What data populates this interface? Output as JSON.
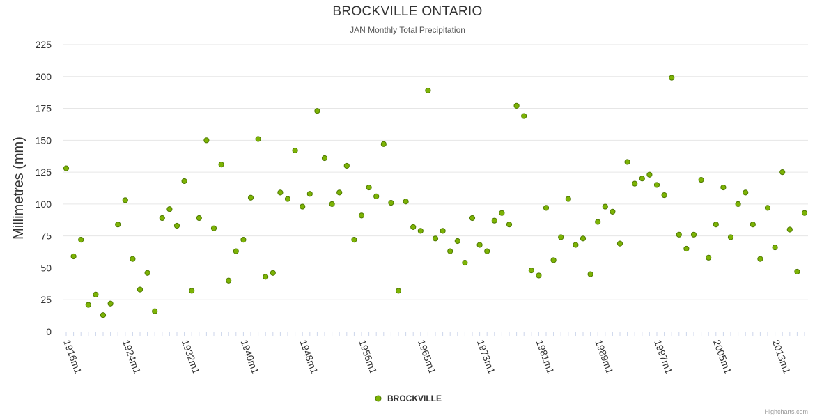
{
  "chart_data": {
    "type": "scatter",
    "title": "BROCKVILLE ONTARIO",
    "subtitle": "JAN Monthly Total Precipitation",
    "ylabel": "Millimetres (mm)",
    "xlabel": "",
    "ylim": [
      0,
      225
    ],
    "yticks": [
      0,
      25,
      50,
      75,
      100,
      125,
      150,
      175,
      200,
      225
    ],
    "x_tick_labels": [
      {
        "label": "1916m1",
        "index": 0
      },
      {
        "label": "1924m1",
        "index": 8
      },
      {
        "label": "1932m1",
        "index": 16
      },
      {
        "label": "1940m1",
        "index": 24
      },
      {
        "label": "1948m1",
        "index": 32
      },
      {
        "label": "1956m1",
        "index": 40
      },
      {
        "label": "1965m1",
        "index": 48
      },
      {
        "label": "1973m1",
        "index": 56
      },
      {
        "label": "1981m1",
        "index": 64
      },
      {
        "label": "1989m1",
        "index": 72
      },
      {
        "label": "1997m1",
        "index": 80
      },
      {
        "label": "2005m1",
        "index": 88
      },
      {
        "label": "2013m1",
        "index": 96
      }
    ],
    "series": [
      {
        "name": "BROCKVILLE",
        "color": "#7cb305",
        "values": [
          128,
          59,
          72,
          21,
          29,
          13,
          22,
          84,
          103,
          57,
          33,
          46,
          16,
          89,
          96,
          83,
          118,
          32,
          89,
          150,
          81,
          131,
          40,
          63,
          72,
          105,
          151,
          43,
          46,
          109,
          104,
          142,
          98,
          108,
          173,
          136,
          100,
          109,
          130,
          72,
          91,
          113,
          106,
          147,
          101,
          32,
          102,
          82,
          79,
          189,
          73,
          79,
          63,
          71,
          54,
          89,
          68,
          63,
          87,
          93,
          84,
          177,
          169,
          48,
          44,
          97,
          56,
          74,
          104,
          68,
          73,
          45,
          86,
          98,
          94,
          69,
          133,
          116,
          120,
          123,
          115,
          107,
          199,
          76,
          65,
          76,
          119,
          58,
          84,
          113,
          74,
          100,
          109,
          84,
          57,
          97,
          66,
          125,
          80,
          47,
          93
        ]
      }
    ],
    "legend": {
      "position": "bottom-center"
    },
    "grid": true
  },
  "credits": "Highcharts.com"
}
